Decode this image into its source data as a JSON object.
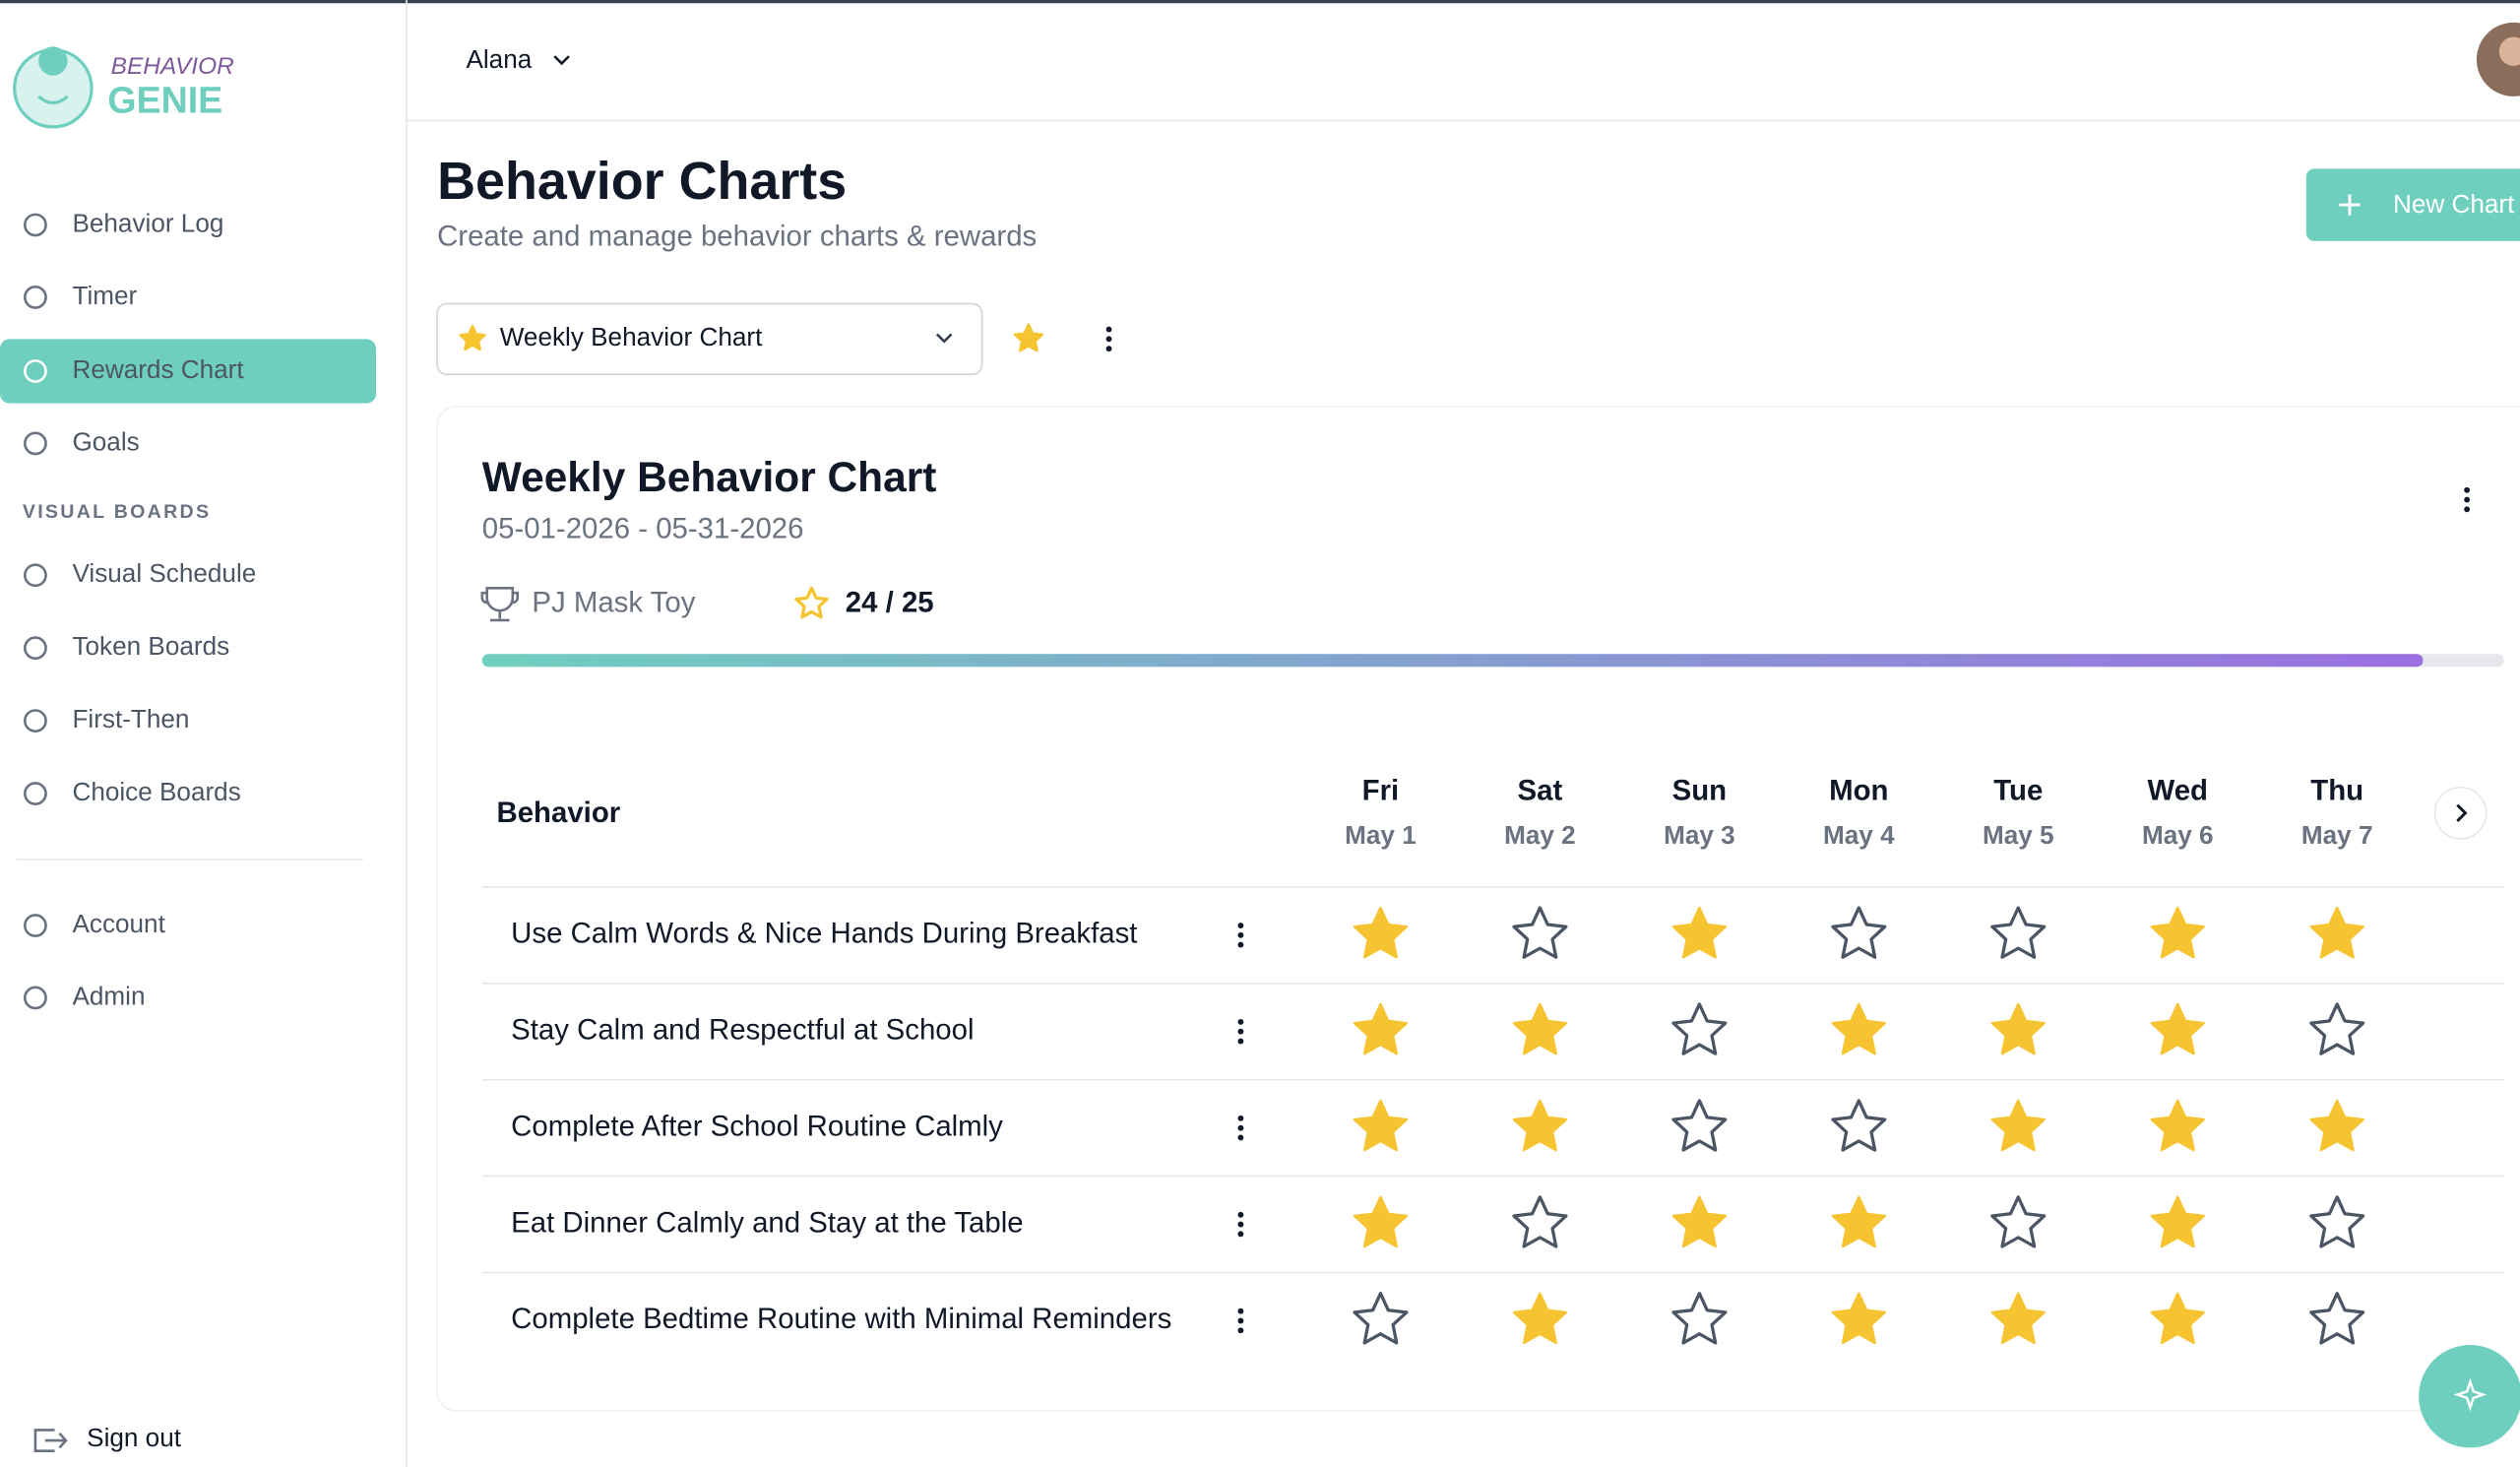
{
  "brand": {
    "line1": "BEHAVIOR",
    "line2": "GENIE"
  },
  "nav": [
    {
      "label": "Behavior Log"
    },
    {
      "label": "Timer"
    },
    {
      "label": "Rewards Chart",
      "active": true
    },
    {
      "label": "Goals"
    }
  ],
  "section": "VISUAL BOARDS",
  "boards": [
    {
      "label": "Visual Schedule"
    },
    {
      "label": "Token Boards"
    },
    {
      "label": "First-Then"
    },
    {
      "label": "Choice Boards"
    }
  ],
  "account": [
    {
      "label": "Account"
    },
    {
      "label": "Admin"
    }
  ],
  "sign_out": "Sign out",
  "user": "Alana",
  "page": {
    "title": "Behavior Charts",
    "subtitle": "Create and manage behavior charts & rewards",
    "new_button": "New Chart"
  },
  "selector": "Weekly Behavior Chart",
  "card": {
    "title": "Weekly Behavior Chart",
    "dates": "05-01-2026 - 05-31-2026",
    "reward": "PJ Mask Toy",
    "progress": {
      "earned": 24,
      "total": 25,
      "label": "24 / 25"
    }
  },
  "table": {
    "header": "Behavior",
    "days": [
      {
        "day": "Fri",
        "date": "May 1"
      },
      {
        "day": "Sat",
        "date": "May 2"
      },
      {
        "day": "Sun",
        "date": "May 3"
      },
      {
        "day": "Mon",
        "date": "May 4"
      },
      {
        "day": "Tue",
        "date": "May 5"
      },
      {
        "day": "Wed",
        "date": "May 6"
      },
      {
        "day": "Thu",
        "date": "May 7"
      }
    ],
    "rows": [
      {
        "behavior": "Use Calm Words & Nice Hands During Breakfast",
        "stars": [
          true,
          false,
          true,
          false,
          false,
          true,
          true
        ]
      },
      {
        "behavior": "Stay Calm and Respectful at School",
        "stars": [
          true,
          true,
          false,
          true,
          true,
          true,
          false
        ]
      },
      {
        "behavior": "Complete After School Routine Calmly",
        "stars": [
          true,
          true,
          false,
          false,
          true,
          true,
          true
        ]
      },
      {
        "behavior": "Eat Dinner Calmly and Stay at the Table",
        "stars": [
          true,
          false,
          true,
          true,
          false,
          true,
          false
        ]
      },
      {
        "behavior": "Complete Bedtime Routine with Minimal Reminders",
        "stars": [
          false,
          true,
          false,
          true,
          true,
          true,
          false
        ]
      }
    ]
  }
}
